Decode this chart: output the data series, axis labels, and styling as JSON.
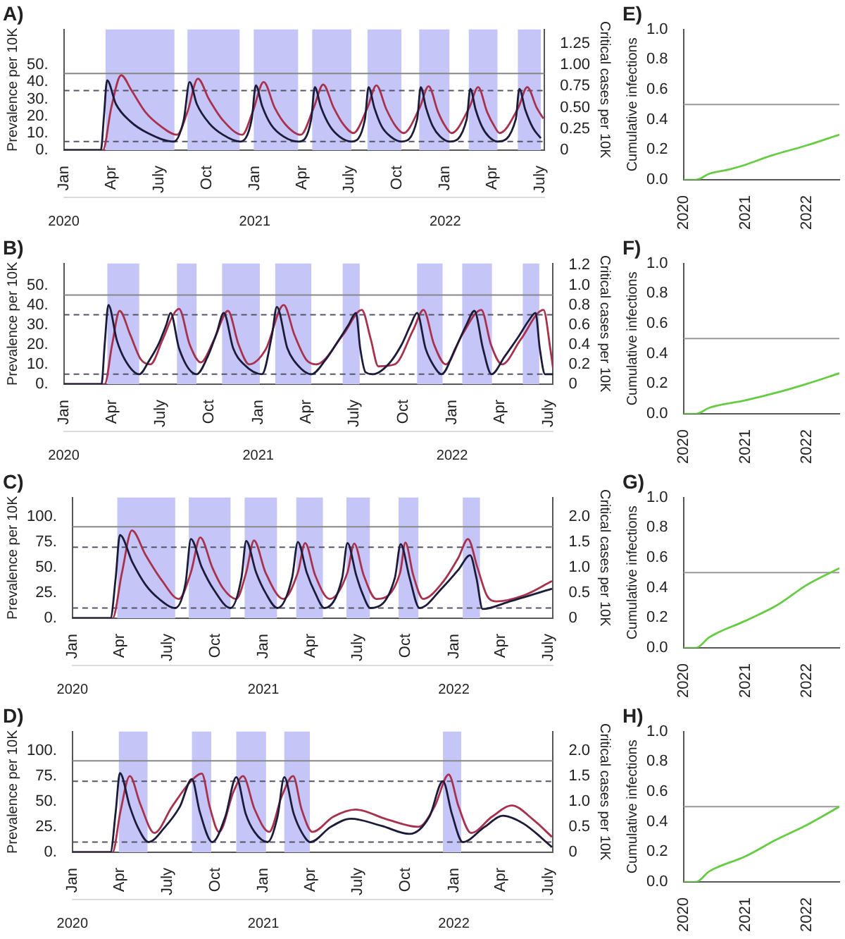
{
  "chart_data": [
    {
      "type": "line",
      "title": "A)",
      "ylabel": "Prevalence per 10K",
      "y2label": "Critical cases per 10K",
      "marker": "none",
      "xlim": [
        "2020-01-01",
        "2022-07-10"
      ],
      "xticks": [
        {
          "value": "2020-01-01",
          "label": "Jan"
        },
        {
          "value": "2020-04-01",
          "label": "Apr"
        },
        {
          "value": "2020-07-01",
          "label": "July"
        },
        {
          "value": "2020-10-01",
          "label": "Oct"
        },
        {
          "value": "2021-01-01",
          "label": "Jan"
        },
        {
          "value": "2021-04-01",
          "label": "Apr"
        },
        {
          "value": "2021-07-01",
          "label": "July"
        },
        {
          "value": "2021-10-01",
          "label": "Oct"
        },
        {
          "value": "2022-01-01",
          "label": "Jan"
        },
        {
          "value": "2022-04-01",
          "label": "Apr"
        },
        {
          "value": "2022-07-01",
          "label": "July"
        }
      ],
      "x2lim": [
        "2020-01-01",
        "2022-07-10"
      ],
      "x2ticks": [
        {
          "value": "2020-01-01",
          "label": "2020"
        },
        {
          "value": "2021-01-01",
          "label": "2021"
        },
        {
          "value": "2022-01-01",
          "label": "2022"
        }
      ],
      "ylim": [
        0,
        71
      ],
      "yticks": [
        {
          "value": 0,
          "label": "0."
        },
        {
          "value": 10,
          "label": "10."
        },
        {
          "value": 20,
          "label": "20."
        },
        {
          "value": 30,
          "label": "30."
        },
        {
          "value": 40,
          "label": "40."
        },
        {
          "value": 50,
          "label": "50."
        }
      ],
      "y2lim": [
        0,
        1.42
      ],
      "y2ticks": [
        {
          "value": 0,
          "label": "0"
        },
        {
          "value": 0.25,
          "label": "0.25"
        },
        {
          "value": 0.5,
          "label": "0.50"
        },
        {
          "value": 0.75,
          "label": "0.75"
        },
        {
          "value": 1,
          "label": "1.00"
        },
        {
          "value": 1.25,
          "label": "1.25"
        }
      ],
      "bands": [
        {
          "axis": "x",
          "from": "2020-03-21",
          "to": "2020-07-31",
          "color": "#c5c5f7"
        },
        {
          "axis": "x",
          "from": "2020-08-25",
          "to": "2020-12-03",
          "color": "#c5c5f7"
        },
        {
          "axis": "x",
          "from": "2020-12-30",
          "to": "2021-03-25",
          "color": "#c5c5f7"
        },
        {
          "axis": "x",
          "from": "2021-04-21",
          "to": "2021-07-05",
          "color": "#c5c5f7"
        },
        {
          "axis": "x",
          "from": "2021-08-05",
          "to": "2021-10-09",
          "color": "#c5c5f7"
        },
        {
          "axis": "x",
          "from": "2021-11-12",
          "to": "2022-01-09",
          "color": "#c5c5f7"
        },
        {
          "axis": "x",
          "from": "2022-02-15",
          "to": "2022-04-11",
          "color": "#c5c5f7"
        },
        {
          "axis": "x",
          "from": "2022-05-20",
          "to": "2022-07-03",
          "color": "#c5c5f7"
        }
      ],
      "ref_lines": [
        {
          "axis": "y",
          "value": 45,
          "color": "#888888"
        },
        {
          "axis": "y",
          "value": 35,
          "color": "#555566",
          "line_style": "dashed"
        },
        {
          "axis": "y",
          "value": 5,
          "color": "#555566",
          "line_style": "dashed"
        }
      ],
      "series": [
        {
          "color": "#1c1c3a",
          "x": [
            "2020-01-01",
            "2020-03-12",
            "2020-03-18",
            "2020-03-24",
            "2020-04-10",
            "2020-05-07",
            "2020-06-10",
            "2020-07-30",
            "2020-08-18",
            "2020-08-29",
            "2020-09-12",
            "2020-10-05",
            "2020-11-01",
            "2020-12-04",
            "2020-12-26",
            "2021-01-03",
            "2021-01-15",
            "2021-02-01",
            "2021-02-25",
            "2021-03-26",
            "2021-04-19",
            "2021-04-26",
            "2021-05-08",
            "2021-05-25",
            "2021-06-12",
            "2021-07-05",
            "2021-07-31",
            "2021-08-07",
            "2021-08-18",
            "2021-09-01",
            "2021-09-18",
            "2021-10-09",
            "2021-11-08",
            "2021-11-15",
            "2021-11-25",
            "2021-12-08",
            "2021-12-22",
            "2022-01-09",
            "2022-02-11",
            "2022-02-18",
            "2022-02-28",
            "2022-03-12",
            "2022-03-25",
            "2022-04-11",
            "2022-05-16",
            "2022-05-23",
            "2022-06-03",
            "2022-06-18",
            "2022-07-03"
          ],
          "values": [
            0,
            0,
            20,
            41,
            27,
            17,
            10,
            5,
            18,
            40,
            27,
            16,
            9,
            5,
            18,
            38,
            26,
            15,
            8,
            5,
            18,
            37,
            25,
            14,
            8,
            5,
            18,
            37,
            25,
            14,
            8,
            5,
            18,
            37,
            25,
            14,
            8,
            5,
            18,
            36,
            24,
            14,
            8,
            5,
            18,
            36,
            24,
            13,
            7
          ]
        },
        {
          "color": "#a8324e",
          "axis": "y2",
          "x": [
            "2020-01-01",
            "2020-03-16",
            "2020-04-01",
            "2020-04-20",
            "2020-05-10",
            "2020-06-05",
            "2020-07-05",
            "2020-08-05",
            "2020-08-25",
            "2020-09-14",
            "2020-10-05",
            "2020-11-01",
            "2020-12-08",
            "2020-12-28",
            "2021-01-18",
            "2021-02-08",
            "2021-03-01",
            "2021-03-30",
            "2021-04-24",
            "2021-05-12",
            "2021-06-01",
            "2021-06-20",
            "2021-07-09",
            "2021-08-05",
            "2021-08-22",
            "2021-09-10",
            "2021-09-28",
            "2021-10-13",
            "2021-11-13",
            "2021-11-30",
            "2021-12-18",
            "2022-01-01",
            "2022-01-13",
            "2022-02-16",
            "2022-03-05",
            "2022-03-22",
            "2022-04-05",
            "2022-04-15",
            "2022-05-21",
            "2022-06-07",
            "2022-06-25",
            "2022-07-08"
          ],
          "values": [
            0,
            0,
            0.5,
            0.88,
            0.7,
            0.45,
            0.28,
            0.18,
            0.45,
            0.84,
            0.6,
            0.35,
            0.18,
            0.45,
            0.8,
            0.5,
            0.3,
            0.18,
            0.5,
            0.77,
            0.5,
            0.3,
            0.2,
            0.5,
            0.76,
            0.48,
            0.28,
            0.2,
            0.5,
            0.75,
            0.45,
            0.28,
            0.2,
            0.5,
            0.74,
            0.45,
            0.28,
            0.2,
            0.5,
            0.74,
            0.5,
            0.37
          ]
        }
      ]
    },
    {
      "type": "line",
      "title": "E)",
      "ylabel": "Cumulative infections",
      "marker": "none",
      "xlim": [
        "2020-01-01",
        "2022-07-10"
      ],
      "xticks": [
        {
          "value": "2020-01-01",
          "label": "2020"
        },
        {
          "value": "2021-01-01",
          "label": "2021"
        },
        {
          "value": "2022-01-01",
          "label": "2022"
        }
      ],
      "ylim": [
        0,
        1
      ],
      "yticks": [
        {
          "value": 0,
          "label": "0.0"
        },
        {
          "value": 0.2,
          "label": "0.2"
        },
        {
          "value": 0.4,
          "label": "0.4"
        },
        {
          "value": 0.6,
          "label": "0.6"
        },
        {
          "value": 0.8,
          "label": "0.8"
        },
        {
          "value": 1,
          "label": "1.0"
        }
      ],
      "ref_lines": [
        {
          "axis": "y",
          "value": 0.5,
          "color": "#999999"
        }
      ],
      "series": [
        {
          "color": "#66cc44",
          "x": [
            "2020-01-01",
            "2020-03-15",
            "2020-06-01",
            "2020-10-01",
            "2021-01-01",
            "2021-06-01",
            "2022-01-01",
            "2022-07-10"
          ],
          "values": [
            0,
            0,
            0.04,
            0.07,
            0.1,
            0.16,
            0.23,
            0.3
          ]
        }
      ]
    },
    {
      "type": "line",
      "title": "B)",
      "ylabel": "Prevalence per 10K",
      "y2label": "Critical cases per 10K",
      "marker": "none",
      "xlim": [
        "2020-01-01",
        "2022-07-10"
      ],
      "xticks": [
        {
          "value": "2020-01-01",
          "label": "Jan"
        },
        {
          "value": "2020-04-01",
          "label": "Apr"
        },
        {
          "value": "2020-07-01",
          "label": "July"
        },
        {
          "value": "2020-10-01",
          "label": "Oct"
        },
        {
          "value": "2021-01-01",
          "label": "Jan"
        },
        {
          "value": "2021-04-01",
          "label": "Apr"
        },
        {
          "value": "2021-07-01",
          "label": "July"
        },
        {
          "value": "2021-10-01",
          "label": "Oct"
        },
        {
          "value": "2022-01-01",
          "label": "Jan"
        },
        {
          "value": "2022-04-01",
          "label": "Apr"
        },
        {
          "value": "2022-07-01",
          "label": "July"
        }
      ],
      "x2lim": [
        "2020-01-01",
        "2022-07-10"
      ],
      "x2ticks": [
        {
          "value": "2020-01-01",
          "label": "2020"
        },
        {
          "value": "2021-01-01",
          "label": "2021"
        },
        {
          "value": "2022-01-01",
          "label": "2022"
        }
      ],
      "ylim": [
        0,
        61
      ],
      "yticks": [
        {
          "value": 0,
          "label": "0."
        },
        {
          "value": 10,
          "label": "10."
        },
        {
          "value": 20,
          "label": "20."
        },
        {
          "value": 30,
          "label": "30."
        },
        {
          "value": 40,
          "label": "40."
        },
        {
          "value": 50,
          "label": "50."
        }
      ],
      "y2lim": [
        0,
        1.22
      ],
      "y2ticks": [
        {
          "value": 0,
          "label": "0"
        },
        {
          "value": 0.2,
          "label": "0.2"
        },
        {
          "value": 0.4,
          "label": "0.4"
        },
        {
          "value": 0.6,
          "label": "0.6"
        },
        {
          "value": 0.8,
          "label": "0.8"
        },
        {
          "value": 1,
          "label": "1.0"
        },
        {
          "value": 1.2,
          "label": "1.2"
        }
      ],
      "bands": [
        {
          "axis": "x",
          "from": "2020-03-23",
          "to": "2020-05-22",
          "color": "#c5c5f7"
        },
        {
          "axis": "x",
          "from": "2020-08-01",
          "to": "2020-09-07",
          "color": "#c5c5f7"
        },
        {
          "axis": "x",
          "from": "2020-10-25",
          "to": "2021-01-04",
          "color": "#c5c5f7"
        },
        {
          "axis": "x",
          "from": "2021-02-02",
          "to": "2021-04-11",
          "color": "#c5c5f7"
        },
        {
          "axis": "x",
          "from": "2021-06-09",
          "to": "2021-07-11",
          "color": "#c5c5f7"
        },
        {
          "axis": "x",
          "from": "2021-10-27",
          "to": "2021-12-14",
          "color": "#c5c5f7"
        },
        {
          "axis": "x",
          "from": "2022-01-20",
          "to": "2022-03-17",
          "color": "#c5c5f7"
        },
        {
          "axis": "x",
          "from": "2022-05-14",
          "to": "2022-06-14",
          "color": "#c5c5f7"
        }
      ],
      "ref_lines": [
        {
          "axis": "y",
          "value": 45,
          "color": "#888888"
        },
        {
          "axis": "y",
          "value": 35,
          "color": "#555566",
          "line_style": "dashed"
        },
        {
          "axis": "y",
          "value": 5,
          "color": "#555566",
          "line_style": "dashed"
        }
      ],
      "series": [
        {
          "color": "#1c1c3a",
          "x": [
            "2020-01-01",
            "2020-03-12",
            "2020-03-18",
            "2020-03-25",
            "2020-04-10",
            "2020-04-28",
            "2020-05-22",
            "2020-06-10",
            "2020-06-27",
            "2020-07-12",
            "2020-07-20",
            "2020-08-05",
            "2020-09-07",
            "2020-09-28",
            "2020-10-15",
            "2020-10-28",
            "2020-11-15",
            "2020-12-05",
            "2021-01-08",
            "2021-01-27",
            "2021-02-05",
            "2021-02-25",
            "2021-03-15",
            "2021-04-11",
            "2021-05-07",
            "2021-06-01",
            "2021-06-20",
            "2021-07-04",
            "2021-07-12",
            "2021-07-22",
            "2021-08-05",
            "2021-09-03",
            "2021-09-28",
            "2021-10-15",
            "2021-10-27",
            "2021-11-12",
            "2021-11-28",
            "2021-12-12",
            "2022-01-07",
            "2022-01-28",
            "2022-02-12",
            "2022-02-28",
            "2022-03-16",
            "2022-04-10",
            "2022-05-06",
            "2022-05-25",
            "2022-06-07",
            "2022-06-15",
            "2022-06-25",
            "2022-07-10"
          ],
          "values": [
            0,
            0,
            20,
            40,
            22,
            11,
            5,
            12,
            20,
            30,
            36,
            18,
            5,
            14,
            26,
            36,
            18,
            10,
            5,
            25,
            39,
            18,
            10,
            5,
            12,
            22,
            30,
            36,
            18,
            6,
            5,
            10,
            20,
            30,
            36,
            18,
            9,
            5,
            18,
            30,
            37,
            18,
            5,
            14,
            24,
            32,
            36,
            18,
            5,
            5
          ]
        },
        {
          "color": "#a8324e",
          "axis": "y2",
          "x": [
            "2020-01-01",
            "2020-03-18",
            "2020-04-01",
            "2020-04-15",
            "2020-05-05",
            "2020-05-25",
            "2020-06-12",
            "2020-07-05",
            "2020-07-25",
            "2020-08-05",
            "2020-08-25",
            "2020-09-15",
            "2020-10-10",
            "2020-11-05",
            "2020-11-25",
            "2020-12-15",
            "2021-01-15",
            "2021-02-18",
            "2021-03-10",
            "2021-04-01",
            "2021-04-20",
            "2021-06-10",
            "2021-07-15",
            "2021-08-01",
            "2021-08-15",
            "2021-09-15",
            "2021-10-20",
            "2021-11-08",
            "2021-11-28",
            "2021-12-20",
            "2022-01-20",
            "2022-02-25",
            "2022-03-15",
            "2022-04-05",
            "2022-05-10",
            "2022-06-22",
            "2022-07-05",
            "2022-07-10"
          ],
          "values": [
            0,
            0,
            0.4,
            0.74,
            0.5,
            0.25,
            0.2,
            0.45,
            0.7,
            0.76,
            0.4,
            0.22,
            0.45,
            0.74,
            0.4,
            0.2,
            0.35,
            0.8,
            0.5,
            0.25,
            0.2,
            0.5,
            0.75,
            0.45,
            0.18,
            0.2,
            0.55,
            0.75,
            0.4,
            0.2,
            0.5,
            0.75,
            0.4,
            0.2,
            0.45,
            0.75,
            0.35,
            0.16
          ]
        }
      ]
    },
    {
      "type": "line",
      "title": "F)",
      "ylabel": "Cumulative infections",
      "marker": "none",
      "xlim": [
        "2020-01-01",
        "2022-07-10"
      ],
      "xticks": [
        {
          "value": "2020-01-01",
          "label": "2020"
        },
        {
          "value": "2021-01-01",
          "label": "2021"
        },
        {
          "value": "2022-01-01",
          "label": "2022"
        }
      ],
      "ylim": [
        0,
        1
      ],
      "yticks": [
        {
          "value": 0,
          "label": "0.0"
        },
        {
          "value": 0.2,
          "label": "0.2"
        },
        {
          "value": 0.4,
          "label": "0.4"
        },
        {
          "value": 0.6,
          "label": "0.6"
        },
        {
          "value": 0.8,
          "label": "0.8"
        },
        {
          "value": 1,
          "label": "1.0"
        }
      ],
      "ref_lines": [
        {
          "axis": "y",
          "value": 0.5,
          "color": "#999999"
        }
      ],
      "series": [
        {
          "color": "#66cc44",
          "x": [
            "2020-01-01",
            "2020-03-15",
            "2020-06-01",
            "2021-01-01",
            "2021-07-01",
            "2022-01-01",
            "2022-07-10"
          ],
          "values": [
            0,
            0,
            0.04,
            0.09,
            0.14,
            0.2,
            0.27
          ]
        }
      ]
    },
    {
      "type": "line",
      "title": "C)",
      "ylabel": "Prevalence per 10K",
      "y2label": "Critical cases per 10K",
      "marker": "none",
      "xlim": [
        "2020-01-01",
        "2022-07-10"
      ],
      "xticks": [
        {
          "value": "2020-01-01",
          "label": "Jan"
        },
        {
          "value": "2020-04-01",
          "label": "Apr"
        },
        {
          "value": "2020-07-01",
          "label": "July"
        },
        {
          "value": "2020-10-01",
          "label": "Oct"
        },
        {
          "value": "2021-01-01",
          "label": "Jan"
        },
        {
          "value": "2021-04-01",
          "label": "Apr"
        },
        {
          "value": "2021-07-01",
          "label": "July"
        },
        {
          "value": "2021-10-01",
          "label": "Oct"
        },
        {
          "value": "2022-01-01",
          "label": "Jan"
        },
        {
          "value": "2022-04-01",
          "label": "Apr"
        },
        {
          "value": "2022-07-01",
          "label": "July"
        }
      ],
      "x2lim": [
        "2020-01-01",
        "2022-07-10"
      ],
      "x2ticks": [
        {
          "value": "2020-01-01",
          "label": "2020"
        },
        {
          "value": "2021-01-01",
          "label": "2021"
        },
        {
          "value": "2022-01-01",
          "label": "2022"
        }
      ],
      "ylim": [
        0,
        119
      ],
      "yticks": [
        {
          "value": 0,
          "label": "0."
        },
        {
          "value": 25,
          "label": "25."
        },
        {
          "value": 50,
          "label": "50."
        },
        {
          "value": 75,
          "label": "75."
        },
        {
          "value": 100,
          "label": "100."
        }
      ],
      "y2lim": [
        0,
        2.38
      ],
      "y2ticks": [
        {
          "value": 0,
          "label": "0"
        },
        {
          "value": 0.5,
          "label": "0.5"
        },
        {
          "value": 1,
          "label": "1.0"
        },
        {
          "value": 1.5,
          "label": "1.5"
        },
        {
          "value": 2,
          "label": "2.0"
        }
      ],
      "bands": [
        {
          "axis": "x",
          "from": "2020-03-27",
          "to": "2020-07-16",
          "color": "#c5c5f7"
        },
        {
          "axis": "x",
          "from": "2020-08-11",
          "to": "2020-10-30",
          "color": "#c5c5f7"
        },
        {
          "axis": "x",
          "from": "2020-11-26",
          "to": "2021-01-27",
          "color": "#c5c5f7"
        },
        {
          "axis": "x",
          "from": "2021-03-05",
          "to": "2021-04-25",
          "color": "#c5c5f7"
        },
        {
          "axis": "x",
          "from": "2021-06-09",
          "to": "2021-07-24",
          "color": "#c5c5f7"
        },
        {
          "axis": "x",
          "from": "2021-09-17",
          "to": "2021-10-25",
          "color": "#c5c5f7"
        },
        {
          "axis": "x",
          "from": "2022-01-18",
          "to": "2022-02-20",
          "color": "#c5c5f7"
        }
      ],
      "ref_lines": [
        {
          "axis": "y",
          "value": 90,
          "color": "#888888"
        },
        {
          "axis": "y",
          "value": 70,
          "color": "#555566",
          "line_style": "dashed"
        },
        {
          "axis": "y",
          "value": 10,
          "color": "#555566",
          "line_style": "dashed"
        }
      ],
      "series": [
        {
          "color": "#1c1c3a",
          "x": [
            "2020-01-01",
            "2020-03-14",
            "2020-03-24",
            "2020-04-01",
            "2020-04-25",
            "2020-05-20",
            "2020-06-15",
            "2020-07-16",
            "2020-08-05",
            "2020-08-15",
            "2020-09-05",
            "2020-09-28",
            "2020-10-30",
            "2020-11-20",
            "2020-11-29",
            "2020-12-18",
            "2021-01-05",
            "2021-01-28",
            "2021-02-25",
            "2021-03-08",
            "2021-03-25",
            "2021-04-10",
            "2021-04-28",
            "2021-06-01",
            "2021-06-11",
            "2021-06-28",
            "2021-07-10",
            "2021-07-25",
            "2021-09-10",
            "2021-09-21",
            "2021-10-08",
            "2021-10-27",
            "2021-12-10",
            "2022-01-10",
            "2022-02-01",
            "2022-02-13",
            "2022-02-25",
            "2022-04-15",
            "2022-07-08"
          ],
          "values": [
            0,
            0,
            40,
            82,
            55,
            33,
            19,
            10,
            35,
            78,
            50,
            28,
            10,
            40,
            76,
            45,
            25,
            10,
            40,
            75,
            45,
            25,
            10,
            40,
            74,
            42,
            24,
            10,
            40,
            73,
            40,
            10,
            30,
            48,
            62,
            40,
            9,
            16,
            29
          ]
        },
        {
          "color": "#a8324e",
          "axis": "y2",
          "x": [
            "2020-01-01",
            "2020-03-18",
            "2020-04-05",
            "2020-04-24",
            "2020-05-20",
            "2020-06-20",
            "2020-07-23",
            "2020-08-15",
            "2020-09-02",
            "2020-09-25",
            "2020-10-15",
            "2020-11-10",
            "2020-11-29",
            "2020-12-14",
            "2021-01-05",
            "2021-02-08",
            "2021-03-08",
            "2021-03-22",
            "2021-04-10",
            "2021-05-08",
            "2021-06-11",
            "2021-06-24",
            "2021-07-12",
            "2021-08-05",
            "2021-09-20",
            "2021-09-30",
            "2021-10-15",
            "2021-11-03",
            "2021-12-10",
            "2022-01-10",
            "2022-01-28",
            "2022-02-15",
            "2022-03-05",
            "2022-03-23",
            "2022-05-15",
            "2022-07-08"
          ],
          "values": [
            0,
            0,
            0.9,
            1.73,
            1.25,
            0.75,
            0.38,
            0.9,
            1.59,
            1.0,
            0.6,
            0.38,
            0.9,
            1.53,
            0.9,
            0.38,
            0.9,
            1.48,
            0.85,
            0.38,
            0.9,
            1.47,
            0.85,
            0.38,
            0.9,
            1.49,
            0.85,
            0.38,
            0.7,
            1.2,
            1.56,
            1.0,
            0.45,
            0.33,
            0.45,
            0.73
          ]
        }
      ]
    },
    {
      "type": "line",
      "title": "G)",
      "ylabel": "Cumulative infections",
      "marker": "none",
      "xlim": [
        "2020-01-01",
        "2022-07-10"
      ],
      "xticks": [
        {
          "value": "2020-01-01",
          "label": "2020"
        },
        {
          "value": "2021-01-01",
          "label": "2021"
        },
        {
          "value": "2022-01-01",
          "label": "2022"
        }
      ],
      "ylim": [
        0,
        1
      ],
      "yticks": [
        {
          "value": 0,
          "label": "0.0"
        },
        {
          "value": 0.2,
          "label": "0.2"
        },
        {
          "value": 0.4,
          "label": "0.4"
        },
        {
          "value": 0.6,
          "label": "0.6"
        },
        {
          "value": 0.8,
          "label": "0.8"
        },
        {
          "value": 1,
          "label": "1.0"
        }
      ],
      "ref_lines": [
        {
          "axis": "y",
          "value": 0.5,
          "color": "#999999"
        }
      ],
      "series": [
        {
          "color": "#66cc44",
          "x": [
            "2020-01-01",
            "2020-03-15",
            "2020-06-01",
            "2021-01-01",
            "2021-07-01",
            "2022-01-01",
            "2022-07-10"
          ],
          "values": [
            0,
            0,
            0.07,
            0.18,
            0.28,
            0.42,
            0.53
          ]
        }
      ]
    },
    {
      "type": "line",
      "title": "D)",
      "ylabel": "Prevalence per 10K",
      "y2label": "Critical cases per 10K",
      "marker": "none",
      "xlim": [
        "2020-01-01",
        "2022-07-10"
      ],
      "xticks": [
        {
          "value": "2020-01-01",
          "label": "Jan"
        },
        {
          "value": "2020-04-01",
          "label": "Apr"
        },
        {
          "value": "2020-07-01",
          "label": "July"
        },
        {
          "value": "2020-10-01",
          "label": "Oct"
        },
        {
          "value": "2021-01-01",
          "label": "Jan"
        },
        {
          "value": "2021-04-01",
          "label": "Apr"
        },
        {
          "value": "2021-07-01",
          "label": "July"
        },
        {
          "value": "2021-10-01",
          "label": "Oct"
        },
        {
          "value": "2022-01-01",
          "label": "Jan"
        },
        {
          "value": "2022-04-01",
          "label": "Apr"
        },
        {
          "value": "2022-07-01",
          "label": "July"
        }
      ],
      "x2lim": [
        "2020-01-01",
        "2022-07-10"
      ],
      "x2ticks": [
        {
          "value": "2020-01-01",
          "label": "2020"
        },
        {
          "value": "2021-01-01",
          "label": "2021"
        },
        {
          "value": "2022-01-01",
          "label": "2022"
        }
      ],
      "ylim": [
        0,
        119
      ],
      "yticks": [
        {
          "value": 0,
          "label": "0."
        },
        {
          "value": 25,
          "label": "25."
        },
        {
          "value": 50,
          "label": "50."
        },
        {
          "value": 75,
          "label": "75."
        },
        {
          "value": 100,
          "label": "100."
        }
      ],
      "y2lim": [
        0,
        2.38
      ],
      "y2ticks": [
        {
          "value": 0,
          "label": "0"
        },
        {
          "value": 0.5,
          "label": "0.5"
        },
        {
          "value": 1,
          "label": "1.0"
        },
        {
          "value": 1.5,
          "label": "1.5"
        },
        {
          "value": 2,
          "label": "2.0"
        }
      ],
      "bands": [
        {
          "axis": "x",
          "from": "2020-03-30",
          "to": "2020-05-24",
          "color": "#c5c5f7"
        },
        {
          "axis": "x",
          "from": "2020-08-17",
          "to": "2020-09-23",
          "color": "#c5c5f7"
        },
        {
          "axis": "x",
          "from": "2020-11-10",
          "to": "2021-01-06",
          "color": "#c5c5f7"
        },
        {
          "axis": "x",
          "from": "2021-02-10",
          "to": "2021-03-31",
          "color": "#c5c5f7"
        },
        {
          "axis": "x",
          "from": "2021-12-11",
          "to": "2022-01-15",
          "color": "#c5c5f7"
        }
      ],
      "ref_lines": [
        {
          "axis": "y",
          "value": 90,
          "color": "#888888"
        },
        {
          "axis": "y",
          "value": 70,
          "color": "#555566",
          "line_style": "dashed"
        },
        {
          "axis": "y",
          "value": 10,
          "color": "#555566",
          "line_style": "dashed"
        }
      ],
      "series": [
        {
          "color": "#1c1c3a",
          "x": [
            "2020-01-01",
            "2020-03-14",
            "2020-03-24",
            "2020-04-01",
            "2020-04-20",
            "2020-05-05",
            "2020-05-26",
            "2020-06-25",
            "2020-07-25",
            "2020-08-17",
            "2020-09-01",
            "2020-09-25",
            "2020-10-20",
            "2020-11-10",
            "2020-11-28",
            "2020-12-15",
            "2021-01-09",
            "2021-01-28",
            "2021-02-10",
            "2021-02-28",
            "2021-03-15",
            "2021-04-01",
            "2021-05-10",
            "2021-06-18",
            "2021-08-15",
            "2021-10-08",
            "2021-11-15",
            "2021-12-11",
            "2021-12-28",
            "2022-01-18",
            "2022-03-01",
            "2022-04-05",
            "2022-05-15",
            "2022-07-08"
          ],
          "values": [
            0,
            0,
            40,
            78,
            45,
            25,
            10,
            24,
            45,
            72,
            40,
            10,
            35,
            74,
            38,
            20,
            10,
            35,
            74,
            38,
            20,
            10,
            25,
            33,
            26,
            18,
            35,
            70,
            38,
            10,
            25,
            36,
            28,
            5
          ]
        },
        {
          "color": "#a8324e",
          "axis": "y2",
          "x": [
            "2020-01-01",
            "2020-03-18",
            "2020-04-02",
            "2020-04-20",
            "2020-05-10",
            "2020-06-06",
            "2020-07-10",
            "2020-08-15",
            "2020-09-05",
            "2020-09-20",
            "2020-10-08",
            "2020-11-05",
            "2020-11-23",
            "2020-12-15",
            "2021-01-12",
            "2021-02-05",
            "2021-02-27",
            "2021-03-15",
            "2021-04-05",
            "2021-05-15",
            "2021-06-27",
            "2021-08-25",
            "2021-10-25",
            "2021-11-25",
            "2021-12-22",
            "2022-01-10",
            "2022-02-03",
            "2022-03-15",
            "2022-04-22",
            "2022-06-01",
            "2022-07-08"
          ],
          "values": [
            0,
            0,
            0.8,
            1.5,
            0.95,
            0.38,
            0.9,
            1.4,
            1.55,
            0.9,
            0.4,
            1.2,
            1.5,
            0.85,
            0.4,
            1.1,
            1.5,
            0.85,
            0.4,
            0.7,
            0.84,
            0.65,
            0.5,
            0.9,
            1.53,
            0.9,
            0.38,
            0.7,
            0.92,
            0.65,
            0.3
          ]
        }
      ]
    },
    {
      "type": "line",
      "title": "H)",
      "ylabel": "Cumulative infections",
      "marker": "none",
      "xlim": [
        "2020-01-01",
        "2022-07-10"
      ],
      "xticks": [
        {
          "value": "2020-01-01",
          "label": "2020"
        },
        {
          "value": "2021-01-01",
          "label": "2021"
        },
        {
          "value": "2022-01-01",
          "label": "2022"
        }
      ],
      "ylim": [
        0,
        1
      ],
      "yticks": [
        {
          "value": 0,
          "label": "0.0"
        },
        {
          "value": 0.2,
          "label": "0.2"
        },
        {
          "value": 0.4,
          "label": "0.4"
        },
        {
          "value": 0.6,
          "label": "0.6"
        },
        {
          "value": 0.8,
          "label": "0.8"
        },
        {
          "value": 1,
          "label": "1.0"
        }
      ],
      "ref_lines": [
        {
          "axis": "y",
          "value": 0.5,
          "color": "#999999"
        }
      ],
      "series": [
        {
          "color": "#66cc44",
          "x": [
            "2020-01-01",
            "2020-03-15",
            "2020-06-01",
            "2021-01-01",
            "2021-07-01",
            "2022-01-01",
            "2022-07-10"
          ],
          "values": [
            0,
            0,
            0.07,
            0.17,
            0.28,
            0.38,
            0.5
          ]
        }
      ]
    }
  ]
}
